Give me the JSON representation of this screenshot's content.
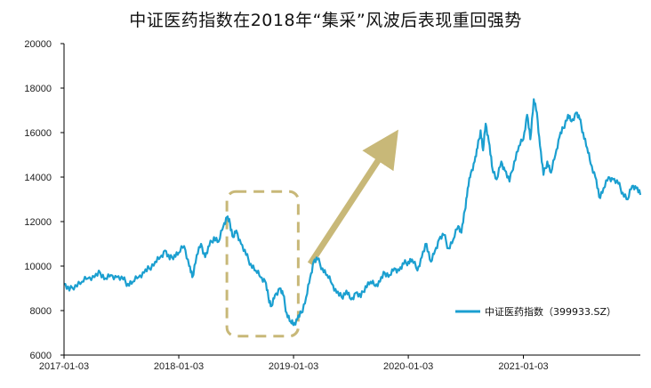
{
  "chart_data": {
    "type": "line",
    "title": "中证医药指数在2018年“集采”风波后表现重回强势",
    "xlabel": "",
    "ylabel": "",
    "x_ticks": [
      "2017-01-03",
      "2018-01-03",
      "2019-01-03",
      "2020-01-03",
      "2021-01-03"
    ],
    "y_ticks": [
      6000,
      8000,
      10000,
      12000,
      14000,
      16000,
      18000,
      20000
    ],
    "ylim": [
      6000,
      20000
    ],
    "xlim": [
      "2017-01-03",
      "2022-01-10"
    ],
    "grid": false,
    "legend_position": "lower-right",
    "colors": {
      "series": "#1b9fd0",
      "annotation": "#c8b878",
      "axis": "#000000"
    },
    "annotations": [
      {
        "type": "dashed-rounded-box",
        "x_range": [
          "2018-06-05",
          "2019-01-18"
        ],
        "y_range": [
          6850,
          13350
        ]
      },
      {
        "type": "arrow",
        "from": [
          "2019-02-25",
          10100
        ],
        "to": [
          "2019-10-20",
          15200
        ]
      }
    ],
    "series": [
      {
        "name": "中证医药指数（399933.SZ）",
        "points": [
          [
            "2017-01-03",
            9200
          ],
          [
            "2017-01-20",
            8900
          ],
          [
            "2017-02-08",
            9150
          ],
          [
            "2017-03-01",
            9300
          ],
          [
            "2017-03-20",
            9450
          ],
          [
            "2017-04-10",
            9500
          ],
          [
            "2017-04-28",
            9700
          ],
          [
            "2017-05-15",
            9450
          ],
          [
            "2017-06-01",
            9600
          ],
          [
            "2017-06-20",
            9500
          ],
          [
            "2017-07-10",
            9400
          ],
          [
            "2017-07-25",
            9200
          ],
          [
            "2017-08-10",
            9300
          ],
          [
            "2017-08-28",
            9500
          ],
          [
            "2017-09-15",
            9700
          ],
          [
            "2017-10-01",
            9900
          ],
          [
            "2017-10-20",
            10200
          ],
          [
            "2017-11-05",
            10400
          ],
          [
            "2017-11-20",
            10700
          ],
          [
            "2017-12-05",
            10300
          ],
          [
            "2017-12-20",
            10500
          ],
          [
            "2018-01-03",
            10600
          ],
          [
            "2018-01-20",
            10900
          ],
          [
            "2018-02-05",
            10000
          ],
          [
            "2018-02-15",
            9500
          ],
          [
            "2018-03-01",
            10500
          ],
          [
            "2018-03-15",
            11000
          ],
          [
            "2018-03-28",
            10400
          ],
          [
            "2018-04-10",
            10900
          ],
          [
            "2018-04-25",
            11300
          ],
          [
            "2018-05-10",
            11100
          ],
          [
            "2018-05-25",
            11800
          ],
          [
            "2018-06-05",
            12200
          ],
          [
            "2018-06-15",
            11900
          ],
          [
            "2018-06-25",
            11300
          ],
          [
            "2018-07-05",
            11600
          ],
          [
            "2018-07-20",
            11000
          ],
          [
            "2018-08-05",
            10500
          ],
          [
            "2018-08-20",
            10100
          ],
          [
            "2018-09-05",
            9800
          ],
          [
            "2018-09-20",
            9500
          ],
          [
            "2018-10-05",
            9300
          ],
          [
            "2018-10-15",
            8600
          ],
          [
            "2018-10-25",
            8200
          ],
          [
            "2018-11-05",
            8700
          ],
          [
            "2018-11-20",
            9000
          ],
          [
            "2018-12-01",
            8700
          ],
          [
            "2018-12-12",
            7900
          ],
          [
            "2018-12-25",
            7500
          ],
          [
            "2019-01-03",
            7350
          ],
          [
            "2019-01-15",
            7600
          ],
          [
            "2019-01-28",
            7900
          ],
          [
            "2019-02-12",
            8600
          ],
          [
            "2019-02-25",
            9500
          ],
          [
            "2019-03-08",
            10200
          ],
          [
            "2019-03-20",
            10300
          ],
          [
            "2019-04-05",
            9900
          ],
          [
            "2019-04-20",
            9600
          ],
          [
            "2019-05-05",
            9200
          ],
          [
            "2019-05-20",
            8800
          ],
          [
            "2019-06-05",
            8600
          ],
          [
            "2019-06-20",
            8900
          ],
          [
            "2019-07-05",
            8500
          ],
          [
            "2019-07-20",
            8800
          ],
          [
            "2019-08-05",
            8600
          ],
          [
            "2019-08-20",
            9100
          ],
          [
            "2019-09-05",
            9300
          ],
          [
            "2019-09-20",
            9100
          ],
          [
            "2019-10-05",
            9300
          ],
          [
            "2019-10-20",
            9700
          ],
          [
            "2019-11-05",
            9600
          ],
          [
            "2019-11-20",
            9900
          ],
          [
            "2019-12-05",
            9800
          ],
          [
            "2019-12-20",
            10100
          ],
          [
            "2020-01-03",
            10200
          ],
          [
            "2020-01-15",
            10300
          ],
          [
            "2020-02-01",
            9800
          ],
          [
            "2020-02-15",
            10400
          ],
          [
            "2020-03-01",
            11000
          ],
          [
            "2020-03-15",
            10200
          ],
          [
            "2020-03-28",
            10700
          ],
          [
            "2020-04-10",
            11200
          ],
          [
            "2020-04-25",
            11400
          ],
          [
            "2020-05-10",
            10800
          ],
          [
            "2020-05-25",
            11200
          ],
          [
            "2020-06-10",
            11800
          ],
          [
            "2020-06-20",
            11500
          ],
          [
            "2020-07-01",
            12500
          ],
          [
            "2020-07-10",
            13500
          ],
          [
            "2020-07-20",
            14200
          ],
          [
            "2020-08-01",
            14700
          ],
          [
            "2020-08-10",
            15300
          ],
          [
            "2020-08-20",
            16100
          ],
          [
            "2020-08-28",
            15200
          ],
          [
            "2020-09-05",
            16400
          ],
          [
            "2020-09-15",
            15600
          ],
          [
            "2020-09-25",
            14500
          ],
          [
            "2020-10-10",
            13900
          ],
          [
            "2020-10-25",
            14700
          ],
          [
            "2020-11-05",
            14300
          ],
          [
            "2020-11-20",
            13800
          ],
          [
            "2020-12-05",
            14700
          ],
          [
            "2020-12-20",
            15400
          ],
          [
            "2021-01-03",
            15700
          ],
          [
            "2021-01-15",
            16800
          ],
          [
            "2021-01-25",
            15700
          ],
          [
            "2021-02-05",
            17500
          ],
          [
            "2021-02-15",
            16900
          ],
          [
            "2021-02-25",
            15400
          ],
          [
            "2021-03-08",
            14100
          ],
          [
            "2021-03-20",
            14700
          ],
          [
            "2021-04-01",
            14200
          ],
          [
            "2021-04-15",
            15000
          ],
          [
            "2021-04-28",
            15800
          ],
          [
            "2021-05-10",
            16200
          ],
          [
            "2021-05-25",
            16800
          ],
          [
            "2021-06-05",
            16500
          ],
          [
            "2021-06-20",
            16900
          ],
          [
            "2021-07-01",
            16600
          ],
          [
            "2021-07-12",
            16000
          ],
          [
            "2021-07-25",
            15300
          ],
          [
            "2021-08-05",
            14600
          ],
          [
            "2021-08-20",
            14000
          ],
          [
            "2021-09-01",
            13100
          ],
          [
            "2021-09-15",
            13500
          ],
          [
            "2021-10-01",
            14000
          ],
          [
            "2021-10-15",
            13900
          ],
          [
            "2021-11-01",
            13700
          ],
          [
            "2021-11-15",
            13300
          ],
          [
            "2021-12-01",
            13000
          ],
          [
            "2021-12-15",
            13600
          ],
          [
            "2021-12-28",
            13500
          ],
          [
            "2022-01-10",
            13200
          ]
        ]
      }
    ]
  }
}
